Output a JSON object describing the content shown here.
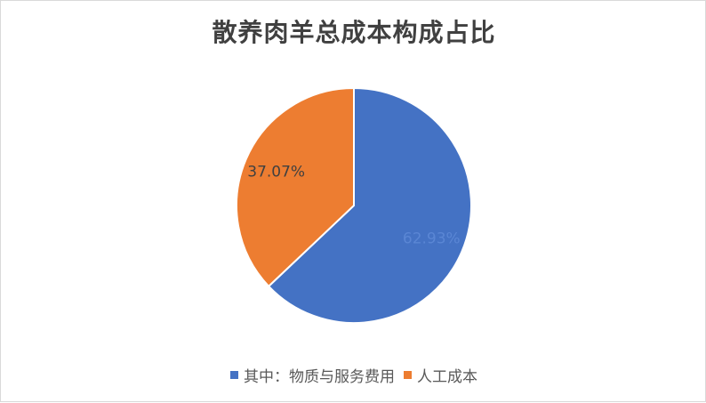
{
  "chart_data": {
    "type": "pie",
    "title": "散养肉羊总成本构成占比",
    "categories": [
      "其中：物质与服务费用",
      "人工成本"
    ],
    "values": [
      62.93,
      37.07
    ],
    "data_labels": [
      "62.93%",
      "37.07%"
    ],
    "colors": [
      "#4472C4",
      "#ED7D31"
    ],
    "legend_position": "bottom"
  }
}
